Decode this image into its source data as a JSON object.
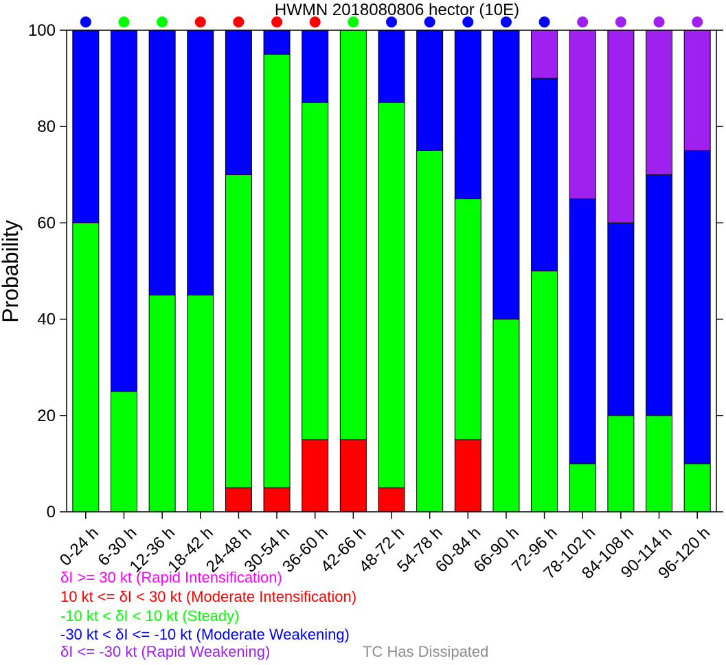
{
  "chart_data": {
    "type": "bar",
    "stacked": true,
    "title": "HWMN 2018080806 hector (10E)",
    "xlabel": "",
    "ylabel": "Probability",
    "ylim": [
      0,
      100
    ],
    "yticks": [
      0,
      20,
      40,
      60,
      80,
      100
    ],
    "grid": false,
    "categories": [
      "0-24 h",
      "6-30 h",
      "12-36 h",
      "18-42 h",
      "24-48 h",
      "30-54 h",
      "36-60 h",
      "42-66 h",
      "48-72 h",
      "54-78 h",
      "60-84 h",
      "66-90 h",
      "72-96 h",
      "78-102 h",
      "84-108 h",
      "90-114 h",
      "96-120 h"
    ],
    "series": [
      {
        "key": "mod_int",
        "color": "#ff0000",
        "values": [
          0,
          0,
          0,
          0,
          5,
          5,
          15,
          15,
          5,
          0,
          15,
          0,
          0,
          0,
          0,
          0,
          0
        ]
      },
      {
        "key": "steady",
        "color": "#00ff00",
        "values": [
          60,
          25,
          45,
          45,
          65,
          90,
          70,
          85,
          80,
          75,
          50,
          40,
          50,
          10,
          20,
          20,
          10
        ]
      },
      {
        "key": "mod_weak",
        "color": "#0000ff",
        "values": [
          40,
          75,
          55,
          55,
          30,
          5,
          15,
          0,
          15,
          25,
          35,
          60,
          40,
          55,
          40,
          50,
          65
        ]
      },
      {
        "key": "rapid_weak",
        "color": "#a020f0",
        "values": [
          0,
          0,
          0,
          0,
          0,
          0,
          0,
          0,
          0,
          0,
          0,
          0,
          10,
          35,
          40,
          30,
          25
        ]
      }
    ],
    "top_markers": [
      "#0000ff",
      "#00ff00",
      "#00ff00",
      "#ff0000",
      "#ff0000",
      "#ff0000",
      "#ff0000",
      "#00ff00",
      "#0000ff",
      "#0000ff",
      "#0000ff",
      "#0000ff",
      "#0000ff",
      "#a020f0",
      "#a020f0",
      "#a020f0",
      "#a020f0"
    ]
  },
  "legend": [
    {
      "text": "δI >= 30 kt (Rapid Intensification)",
      "color": "#ff00ff"
    },
    {
      "text": "10 kt <= δI < 30 kt (Moderate Intensification)",
      "color": "#ff0000"
    },
    {
      "text": "-10 kt < δI < 10 kt (Steady)",
      "color": "#00ff00"
    },
    {
      "text": "-30 kt < δI <= -10 kt (Moderate Weakening)",
      "color": "#0000ff"
    },
    {
      "text": "δI <= -30 kt (Rapid Weakening)",
      "color": "#a020f0"
    }
  ],
  "dissipated_text": "TC Has Dissipated"
}
